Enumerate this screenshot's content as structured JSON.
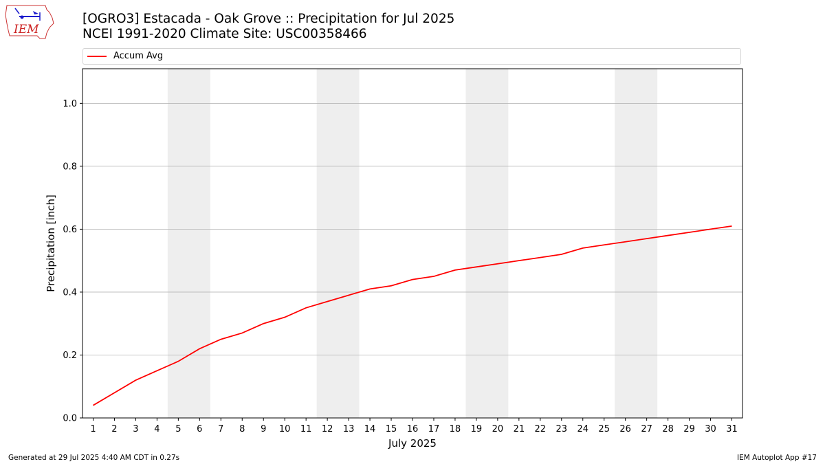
{
  "logo": {
    "text": "IEM"
  },
  "header": {
    "title_line1": "[OGRO3] Estacada - Oak Grove :: Precipitation for Jul 2025",
    "title_line2": "NCEI 1991-2020 Climate Site: USC00358466"
  },
  "footer": {
    "generated": "Generated at 29 Jul 2025 4:40 AM CDT in 0.27s",
    "app": "IEM Autoplot App #17"
  },
  "colors": {
    "series": "#ff0000",
    "weekend_band": "#eeeeee",
    "grid": "#b0b0b0"
  },
  "chart_data": {
    "type": "line",
    "xlabel": "July 2025",
    "ylabel": "Precipitation [inch]",
    "xlim": [
      0.5,
      31.5
    ],
    "ylim": [
      0,
      1.11
    ],
    "grid": "horizontal",
    "legend_position": "top",
    "x": [
      1,
      2,
      3,
      4,
      5,
      6,
      7,
      8,
      9,
      10,
      11,
      12,
      13,
      14,
      15,
      16,
      17,
      18,
      19,
      20,
      21,
      22,
      23,
      24,
      25,
      26,
      27,
      28,
      29,
      30,
      31
    ],
    "x_tick_labels": [
      "1",
      "2",
      "3",
      "4",
      "5",
      "6",
      "7",
      "8",
      "9",
      "10",
      "11",
      "12",
      "13",
      "14",
      "15",
      "16",
      "17",
      "18",
      "19",
      "20",
      "21",
      "22",
      "23",
      "24",
      "25",
      "26",
      "27",
      "28",
      "29",
      "30",
      "31"
    ],
    "y_ticks": [
      0.0,
      0.2,
      0.4,
      0.6,
      0.8,
      1.0
    ],
    "y_tick_labels": [
      "0.0",
      "0.2",
      "0.4",
      "0.6",
      "0.8",
      "1.0"
    ],
    "weekend_bands": [
      [
        5,
        6
      ],
      [
        12,
        13
      ],
      [
        19,
        20
      ],
      [
        26,
        27
      ]
    ],
    "series": [
      {
        "name": "Accum Avg",
        "values": [
          0.04,
          0.08,
          0.12,
          0.15,
          0.18,
          0.22,
          0.25,
          0.27,
          0.3,
          0.32,
          0.35,
          0.37,
          0.39,
          0.41,
          0.42,
          0.44,
          0.45,
          0.47,
          0.48,
          0.49,
          0.5,
          0.51,
          0.52,
          0.54,
          0.55,
          0.56,
          0.57,
          0.58,
          0.59,
          0.6,
          0.61
        ]
      }
    ]
  }
}
